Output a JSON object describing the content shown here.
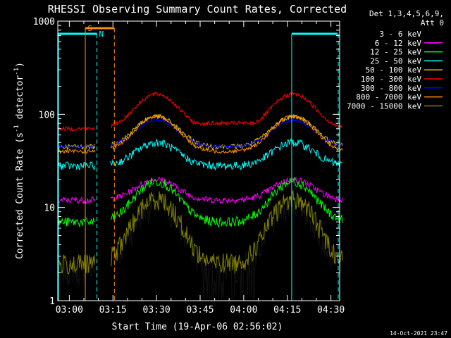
{
  "chart_data": {
    "type": "line",
    "title": "RHESSI Observing Summary Count Rates, Corrected",
    "xlabel": "Start Time (19-Apr-06 02:56:02)",
    "ylabel_main": "Corrected Count Rate (s",
    "ylabel_exp1": "-1",
    "ylabel_mid": " detector",
    "ylabel_exp2": "-1",
    "ylabel_end": ")",
    "y_scale": "log",
    "ylim": [
      1,
      1000
    ],
    "xlim": [
      "02:56:02",
      "04:33:00"
    ],
    "x_ticks": [
      "03:00",
      "03:15",
      "03:30",
      "03:45",
      "04:00",
      "04:15",
      "04:30"
    ],
    "y_ticks": [
      "1",
      "10",
      "100",
      "1000"
    ],
    "legend_header": [
      "Det 1,3,4,5,6,9,",
      "Att 0"
    ],
    "legend_position": "right",
    "timestamp": "14-Oct-2021 23:47",
    "flags": {
      "saa_label": "S",
      "night_label": "N"
    },
    "series": [
      {
        "name": "3 - 6 keV",
        "color": "#000000"
      },
      {
        "name": "6 - 12 keV",
        "color": "#ff00ff"
      },
      {
        "name": "12 - 25 keV",
        "color": "#00ff00"
      },
      {
        "name": "25 - 50 keV",
        "color": "#00ffff"
      },
      {
        "name": "50 - 100 keV",
        "color": "#e6c800"
      },
      {
        "name": "100 - 300 keV",
        "color": "#ff0000"
      },
      {
        "name": "300 - 800 keV",
        "color": "#0000ff"
      },
      {
        "name": "800 - 7000 keV",
        "color": "#ff8c00"
      },
      {
        "name": "7000 - 15000 keV",
        "color": "#808000"
      }
    ]
  }
}
